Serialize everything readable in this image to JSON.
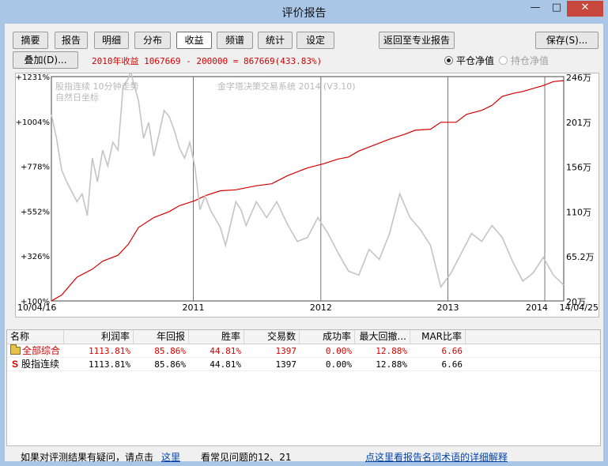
{
  "window": {
    "title": "评价报告",
    "minimize": "—",
    "maximize": "□",
    "close": "✕"
  },
  "toolbar": {
    "tabs": [
      {
        "label": "摘要"
      },
      {
        "label": "报告"
      },
      {
        "label": "明细"
      },
      {
        "label": "分布"
      },
      {
        "label": "收益"
      },
      {
        "label": "频谱"
      },
      {
        "label": "统计"
      },
      {
        "label": "设定"
      }
    ],
    "active_tab": "收益",
    "return_label": "返回至专业报告",
    "save_label": "保存(S)...",
    "add_label": "叠加(D)...",
    "profit_text": "2010年收益 1067669 - 200000 = 867669(433.83%)",
    "radio_flat_label": "平仓净值",
    "radio_hold_label": "持仓净值"
  },
  "chart": {
    "watermark_lines": [
      "股指连续 10分钟走势",
      "自然日坐标"
    ],
    "system_label": "金字塔决策交易系统 2014 (V3.10)"
  },
  "chart_data": {
    "type": "line",
    "x_start": "10/04/16",
    "x_end": "14/04/25",
    "x_tick_labels": [
      "10/04/16",
      "2011",
      "2012",
      "2013",
      "2014",
      "14/04/25"
    ],
    "y_left_ticks": [
      "+1231%",
      "+1004%",
      "+778%",
      "+552%",
      "+326%",
      "+100%"
    ],
    "y_right_ticks": [
      "246万",
      "201万",
      "156万",
      "110万",
      "65.2万",
      "20万"
    ],
    "ylim_left_percent": [
      100,
      1231
    ],
    "ylim_right_wan": [
      20,
      246
    ],
    "grid": "vertical lines at year boundaries",
    "series": [
      {
        "color": "#d40000",
        "axis": "right",
        "t": [
          0.0,
          0.02,
          0.05,
          0.08,
          0.1,
          0.13,
          0.15,
          0.17,
          0.2,
          0.23,
          0.25,
          0.28,
          0.3,
          0.33,
          0.36,
          0.4,
          0.43,
          0.46,
          0.48,
          0.5,
          0.53,
          0.56,
          0.58,
          0.6,
          0.63,
          0.66,
          0.69,
          0.71,
          0.74,
          0.76,
          0.79,
          0.81,
          0.84,
          0.86,
          0.88,
          0.9,
          0.92,
          0.94,
          0.96,
          0.98,
          1.0
        ],
        "values": [
          20,
          26,
          44,
          52,
          60,
          66,
          77,
          94,
          104,
          110,
          116,
          121,
          126,
          131,
          132,
          136,
          138,
          146,
          150,
          154,
          158,
          163,
          165,
          171,
          177,
          183,
          188,
          192,
          193,
          200,
          200,
          208,
          212,
          217,
          226,
          229,
          231,
          234,
          237,
          241,
          242
        ]
      },
      {
        "color": "#c4c4c4",
        "axis": "left",
        "t": [
          0.0,
          0.01,
          0.02,
          0.03,
          0.05,
          0.06,
          0.07,
          0.08,
          0.09,
          0.1,
          0.11,
          0.12,
          0.13,
          0.14,
          0.15,
          0.155,
          0.16,
          0.17,
          0.18,
          0.19,
          0.2,
          0.21,
          0.22,
          0.23,
          0.24,
          0.25,
          0.26,
          0.27,
          0.28,
          0.29,
          0.3,
          0.31,
          0.33,
          0.34,
          0.36,
          0.37,
          0.38,
          0.4,
          0.42,
          0.44,
          0.46,
          0.48,
          0.5,
          0.52,
          0.54,
          0.56,
          0.58,
          0.6,
          0.62,
          0.64,
          0.66,
          0.68,
          0.7,
          0.72,
          0.74,
          0.76,
          0.78,
          0.8,
          0.82,
          0.84,
          0.86,
          0.88,
          0.9,
          0.92,
          0.94,
          0.96,
          0.98,
          1.0
        ],
        "values": [
          1040,
          920,
          760,
          700,
          600,
          640,
          530,
          820,
          700,
          860,
          780,
          900,
          860,
          1180,
          1220,
          1260,
          1200,
          1110,
          920,
          1000,
          830,
          940,
          1060,
          1030,
          960,
          870,
          820,
          900,
          780,
          560,
          630,
          560,
          470,
          380,
          600,
          560,
          480,
          600,
          520,
          600,
          490,
          400,
          420,
          520,
          440,
          340,
          250,
          230,
          360,
          310,
          440,
          640,
          520,
          460,
          380,
          170,
          240,
          340,
          440,
          400,
          480,
          420,
          300,
          200,
          240,
          320,
          230,
          180
        ]
      }
    ]
  },
  "table": {
    "headers": [
      "名称",
      "利润率",
      "年回报",
      "胜率",
      "交易数",
      "成功率",
      "最大回撤...",
      "MAR比率"
    ],
    "rows": [
      {
        "name": "全部综合",
        "icon": "folder-icon",
        "highlight": true,
        "cells": [
          "1113.81%",
          "85.86%",
          "44.81%",
          "1397",
          "0.00%",
          "12.88%",
          "6.66"
        ]
      },
      {
        "name": "股指连续",
        "icon": "s-icon",
        "highlight": false,
        "cells": [
          "1113.81%",
          "85.86%",
          "44.81%",
          "1397",
          "0.00%",
          "12.88%",
          "6.66"
        ]
      }
    ]
  },
  "footer": {
    "question_text": "如果对评测结果有疑问，请点击",
    "here_link": "这里",
    "faq_text": "看常见问题的12、21",
    "glossary_link": "点这里看报告名词术语的详细解释"
  },
  "colors": {
    "accent_red": "#d40000",
    "link_blue": "#0645ad",
    "window_frame": "#aac6e6"
  }
}
